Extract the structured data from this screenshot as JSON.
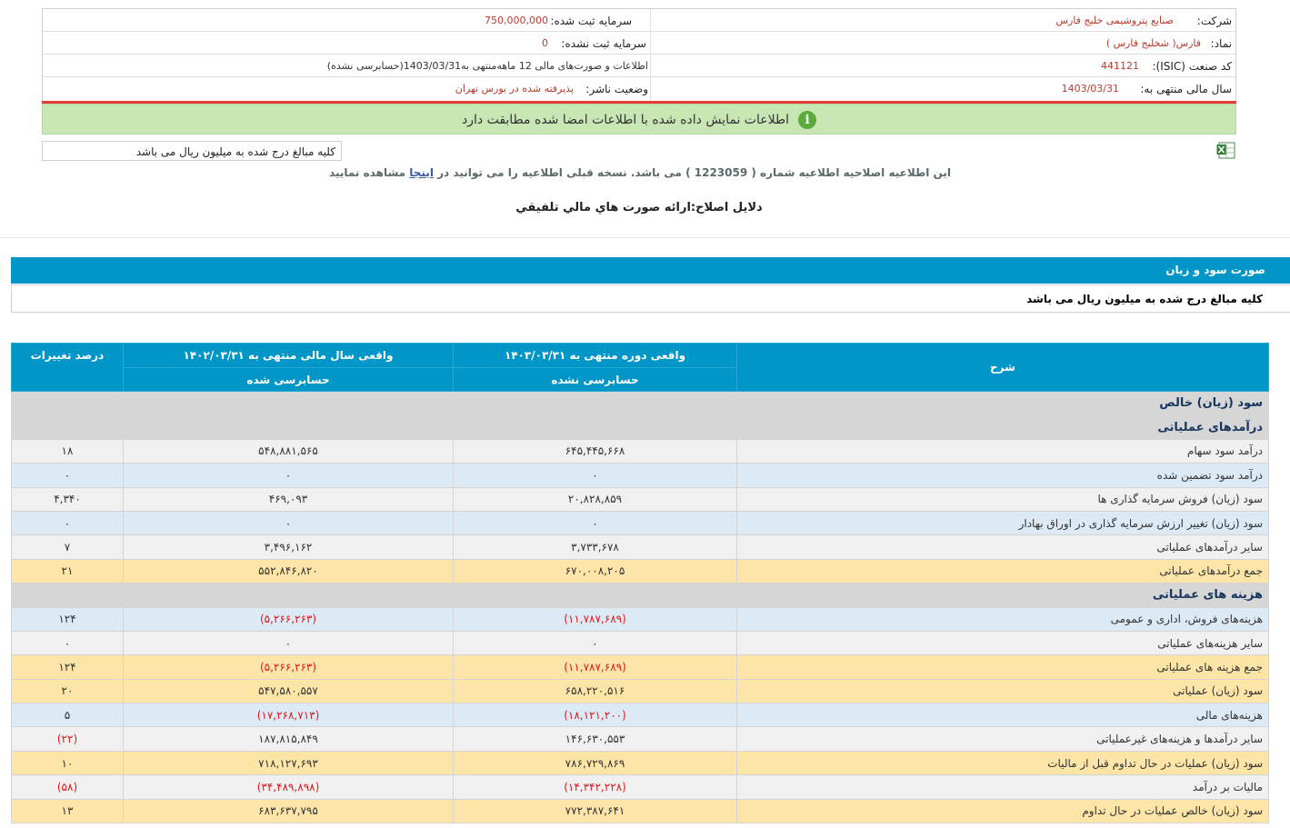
{
  "info": {
    "company_label": "شرکت:",
    "company_value": "صنایع پتروشیمی خلیج فارس",
    "registered_capital_label": "سرمایه ثبت شده:",
    "registered_capital_value": "750,000,000",
    "symbol_label": "نماد:",
    "symbol_value": "فارس( شخلیج فارس )",
    "unregistered_capital_label": "سرمایه ثبت نشده:",
    "unregistered_capital_value": "0",
    "isic_label": "کد صنعت (ISIC):",
    "isic_value": "441121",
    "period_text": "اطلاعات و صورت‌های مالی 12 ماهه‌منتهی به1403/03/31(حسابرسی نشده)",
    "fiscal_year_label": "سال مالی منتهی به:",
    "fiscal_year_value": "1403/03/31",
    "publisher_status_label": "وضعیت ناشر:",
    "publisher_status_value": "پذیرفته شده در بورس تهران"
  },
  "banner": {
    "text": "اطلاعات نمایش داده شده با اطلاعات امضا شده مطابقت دارد",
    "icon": "info-icon"
  },
  "units_note": "کلیه مبالغ درج شده به میلیون ریال می باشد",
  "notice": {
    "prefix": "این اطلاعیه اصلاحیه اطلاعیه شماره ( 1223059 ) می باشد. نسخه قبلی اطلاعیه را می توانید در",
    "link": "اینجا",
    "suffix": "مشاهده نمایید"
  },
  "correction_reason": "دلایل اصلاح:ارائه صورت هاي مالي تلفيقي",
  "statement": {
    "title": "صورت سود و زیان",
    "subtitle": "کلیه مبالغ درج شده به میلیون ریال می باشد"
  },
  "table": {
    "headers": {
      "desc": "شرح",
      "current_period": "واقعی دوره منتهی به ۱۴۰۳/۰۳/۳۱",
      "current_audit": "حسابرسی نشده",
      "prev_year": "واقعی سال مالی منتهی به ۱۴۰۲/۰۳/۳۱",
      "prev_audit": "حسابرسی شده",
      "change": "درصد تغییرات"
    },
    "rows": [
      {
        "desc": "سود (زیان) خالص",
        "cur": "",
        "prev": "",
        "chg": ""
      },
      {
        "desc": "درآمدهای عملیاتی",
        "cur": "",
        "prev": "",
        "chg": ""
      },
      {
        "desc": "درآمد سود سهام",
        "cur": "۶۴۵,۴۴۵,۶۶۸",
        "prev": "۵۴۸,۸۸۱,۵۶۵",
        "chg": "۱۸"
      },
      {
        "desc": "درآمد سود تضمین شده",
        "cur": "۰",
        "prev": "۰",
        "chg": "۰"
      },
      {
        "desc": "سود (زیان) فروش سرمایه گذاری ها",
        "cur": "۲۰,۸۲۸,۸۵۹",
        "prev": "۴۶۹,۰۹۳",
        "chg": "۴,۳۴۰"
      },
      {
        "desc": "سود (زیان) تغییر ارزش سرمایه گذاری در اوراق بهادار",
        "cur": "۰",
        "prev": "۰",
        "chg": "۰"
      },
      {
        "desc": "سایر درآمدهای عملیاتی",
        "cur": "۳,۷۳۳,۶۷۸",
        "prev": "۳,۴۹۶,۱۶۲",
        "chg": "۷"
      },
      {
        "desc": "جمع درآمدهای عملیاتی",
        "cur": "۶۷۰,۰۰۸,۲۰۵",
        "prev": "۵۵۲,۸۴۶,۸۲۰",
        "chg": "۲۱"
      },
      {
        "desc": "هزینه های عملیاتی",
        "cur": "",
        "prev": "",
        "chg": ""
      },
      {
        "desc": "هزینه‌های فروش، اداری و عمومی",
        "cur": "(۱۱,۷۸۷,۶۸۹)",
        "prev": "(۵,۲۶۶,۲۶۳)",
        "chg": "۱۲۴"
      },
      {
        "desc": "سایر هزینه‌های عملیاتی",
        "cur": "۰",
        "prev": "۰",
        "chg": "۰"
      },
      {
        "desc": "جمع هزینه های عملیاتی",
        "cur": "(۱۱,۷۸۷,۶۸۹)",
        "prev": "(۵,۲۶۶,۲۶۳)",
        "chg": "۱۲۴"
      },
      {
        "desc": "سود (زیان) عملیاتی",
        "cur": "۶۵۸,۲۲۰,۵۱۶",
        "prev": "۵۴۷,۵۸۰,۵۵۷",
        "chg": "۲۰"
      },
      {
        "desc": "هزینه‌های مالی",
        "cur": "(۱۸,۱۲۱,۲۰۰)",
        "prev": "(۱۷,۲۶۸,۷۱۳)",
        "chg": "۵"
      },
      {
        "desc": "سایر درآمدها و هزینه‌های غیرعملیاتی",
        "cur": "۱۴۶,۶۳۰,۵۵۳",
        "prev": "۱۸۷,۸۱۵,۸۴۹",
        "chg": "(۲۲)"
      },
      {
        "desc": "سود (زیان) عملیات در حال تداوم قبل از مالیات",
        "cur": "۷۸۶,۷۲۹,۸۶۹",
        "prev": "۷۱۸,۱۲۷,۶۹۳",
        "chg": "۱۰"
      },
      {
        "desc": "مالیات بر درآمد",
        "cur": "(۱۴,۳۴۲,۲۲۸)",
        "prev": "(۳۴,۴۸۹,۸۹۸)",
        "chg": "(۵۸)"
      },
      {
        "desc": "سود (زیان) خالص عملیات در حال تداوم",
        "cur": "۷۷۲,۳۸۷,۶۴۱",
        "prev": "۶۸۳,۶۳۷,۷۹۵",
        "chg": "۱۳"
      }
    ]
  },
  "colors": {
    "header_blue": "#0096c8",
    "banner_green": "#c8e6b4",
    "alert_red": "#e53935",
    "total_row": "#fde5a8",
    "section_row": "#d6d6d6",
    "negative_text": "#e0161b"
  }
}
